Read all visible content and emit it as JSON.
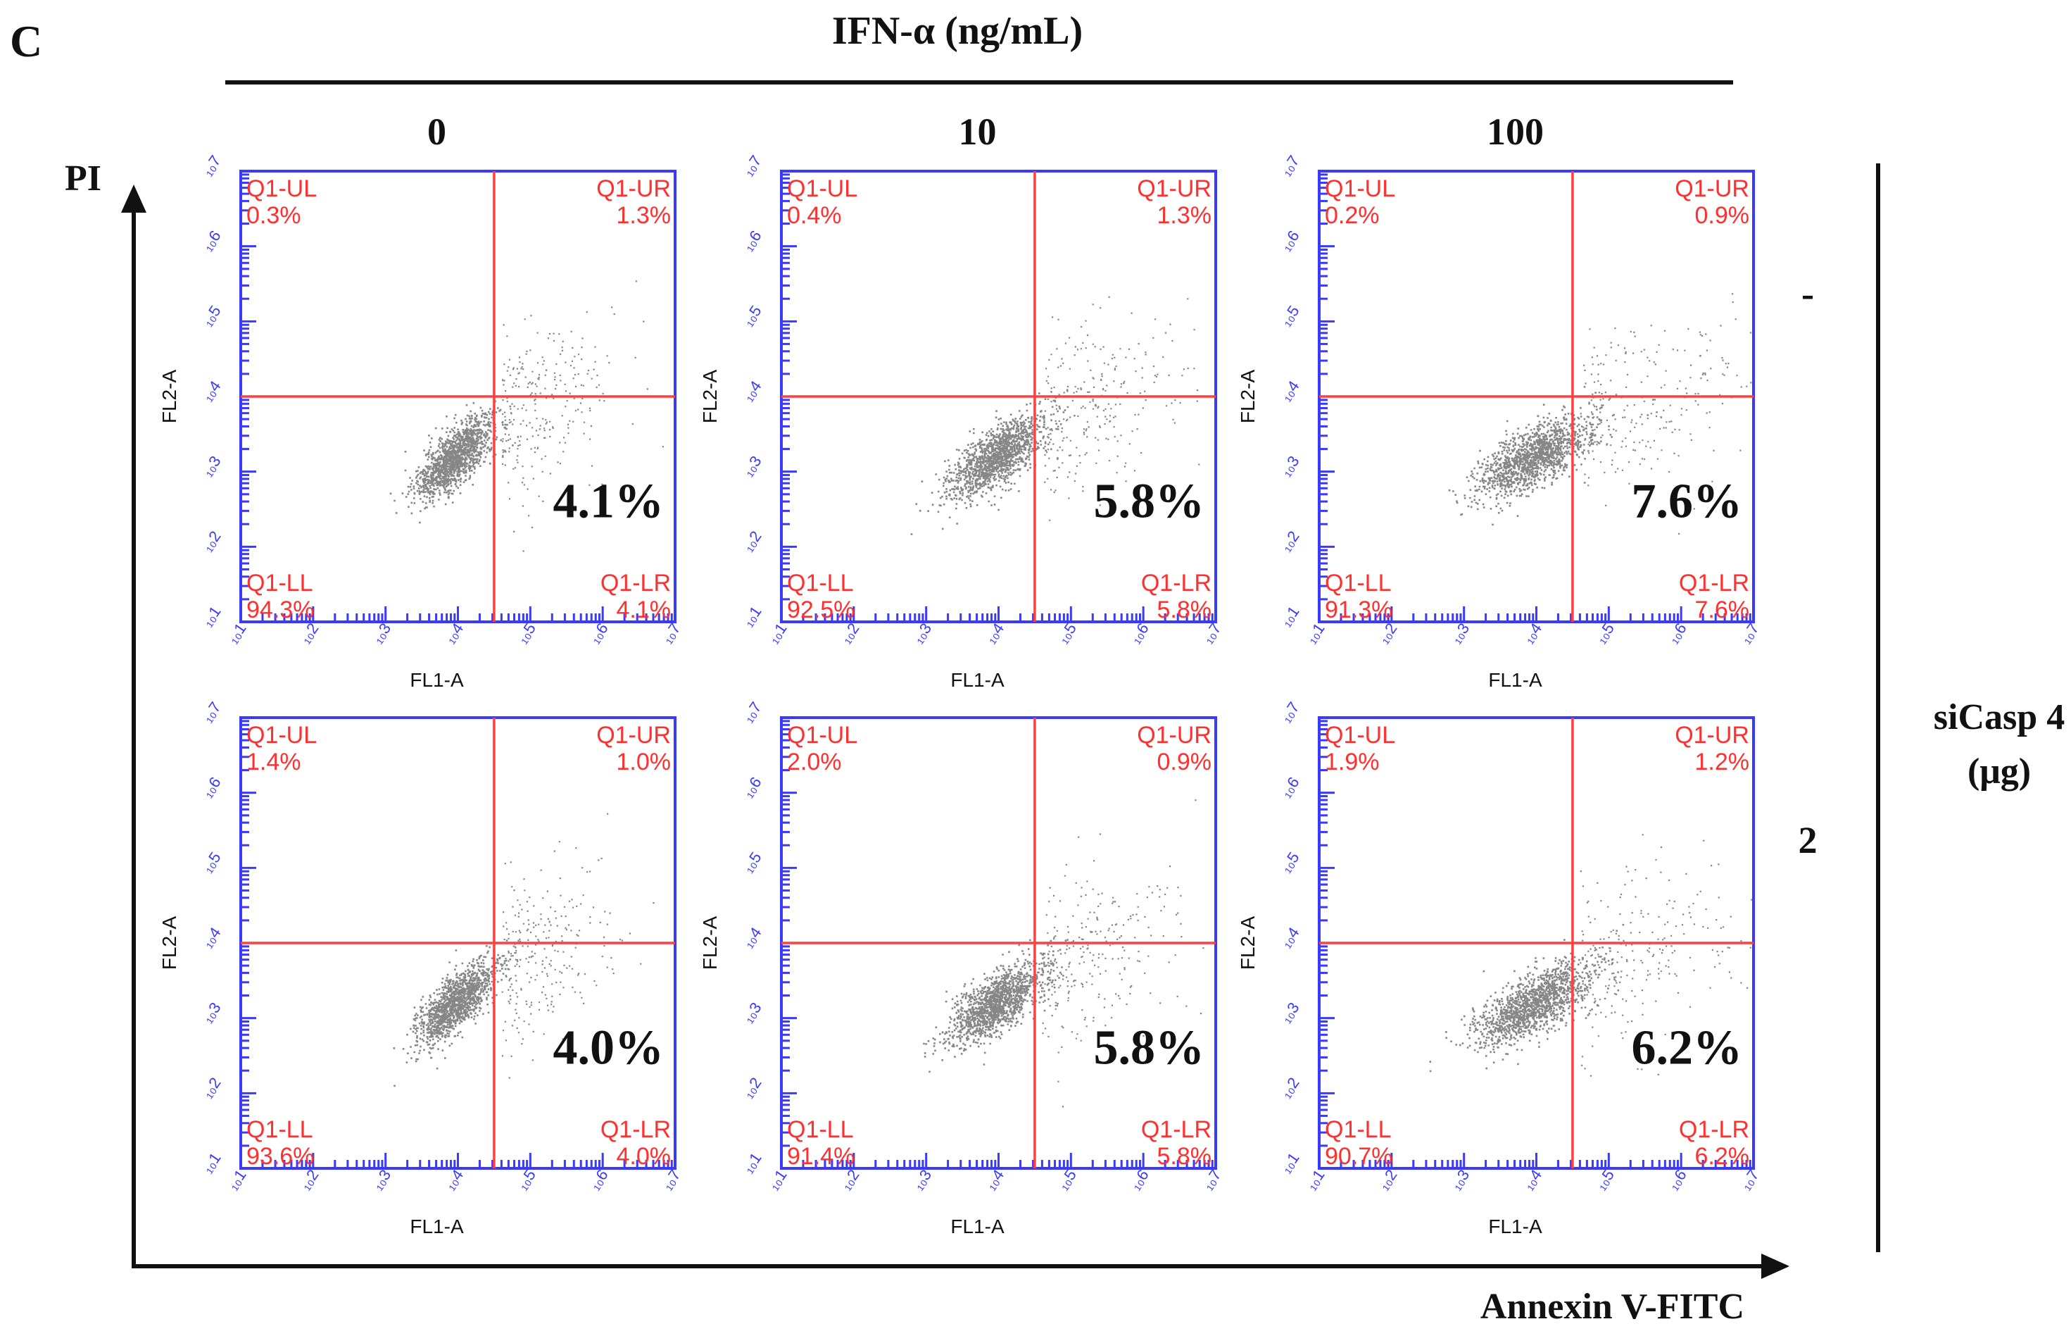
{
  "figure": {
    "panel_letter": "C",
    "top_title": "IFN-α (ng/mL)",
    "y_axis_label": "PI",
    "x_axis_label": "Annexin V-FITC",
    "row_group_label_line1": "siCasp 4",
    "row_group_label_line2": "(μg)"
  },
  "colors": {
    "frame": "#3a3aff",
    "gate": "#ff4040",
    "quadrant_text": "#ff3030",
    "dots": "#222222",
    "text": "#111111"
  },
  "chart_data": {
    "type": "scatter",
    "subtype": "flow-cytometry-quadrant-grid",
    "column_header_title": "IFN-α (ng/mL)",
    "columns": [
      "0",
      "10",
      "100"
    ],
    "row_header_title": "siCasp 4 (μg)",
    "rows": [
      "-",
      "2"
    ],
    "xlabel": "FL1-A",
    "ylabel": "FL2-A",
    "xlim": [
      1,
      7
    ],
    "ylim": [
      1,
      7
    ],
    "tick_exponents": [
      1,
      2,
      3,
      4,
      5,
      6,
      7
    ],
    "tick_base": "10",
    "tick_mark_prefix": "₁₀",
    "quadrant_names": [
      "Q1-UL",
      "Q1-UR",
      "Q1-LL",
      "Q1-LR"
    ],
    "panels": [
      {
        "row": "-",
        "column": "0",
        "gate_x": 4.5,
        "gate_y": 4.0,
        "Q1-UL": "0.3%",
        "Q1-UR": "1.3%",
        "Q1-LL": "94.3%",
        "Q1-LR": "4.1%",
        "highlight": "4.1%"
      },
      {
        "row": "-",
        "column": "10",
        "gate_x": 4.5,
        "gate_y": 4.0,
        "Q1-UL": "0.4%",
        "Q1-UR": "1.3%",
        "Q1-LL": "92.5%",
        "Q1-LR": "5.8%",
        "highlight": "5.8%"
      },
      {
        "row": "-",
        "column": "100",
        "gate_x": 4.5,
        "gate_y": 4.0,
        "Q1-UL": "0.2%",
        "Q1-UR": "0.9%",
        "Q1-LL": "91.3%",
        "Q1-LR": "7.6%",
        "highlight": "7.6%"
      },
      {
        "row": "2",
        "column": "0",
        "gate_x": 4.5,
        "gate_y": 4.0,
        "Q1-UL": "1.4%",
        "Q1-UR": "1.0%",
        "Q1-LL": "93.6%",
        "Q1-LR": "4.0%",
        "highlight": "4.0%"
      },
      {
        "row": "2",
        "column": "10",
        "gate_x": 4.5,
        "gate_y": 4.0,
        "Q1-UL": "2.0%",
        "Q1-UR": "0.9%",
        "Q1-LL": "91.4%",
        "Q1-LR": "5.8%",
        "highlight": "5.8%"
      },
      {
        "row": "2",
        "column": "100",
        "gate_x": 4.5,
        "gate_y": 4.0,
        "Q1-UL": "1.9%",
        "Q1-UR": "1.2%",
        "Q1-LL": "90.7%",
        "Q1-LR": "6.2%",
        "highlight": "6.2%"
      }
    ]
  }
}
